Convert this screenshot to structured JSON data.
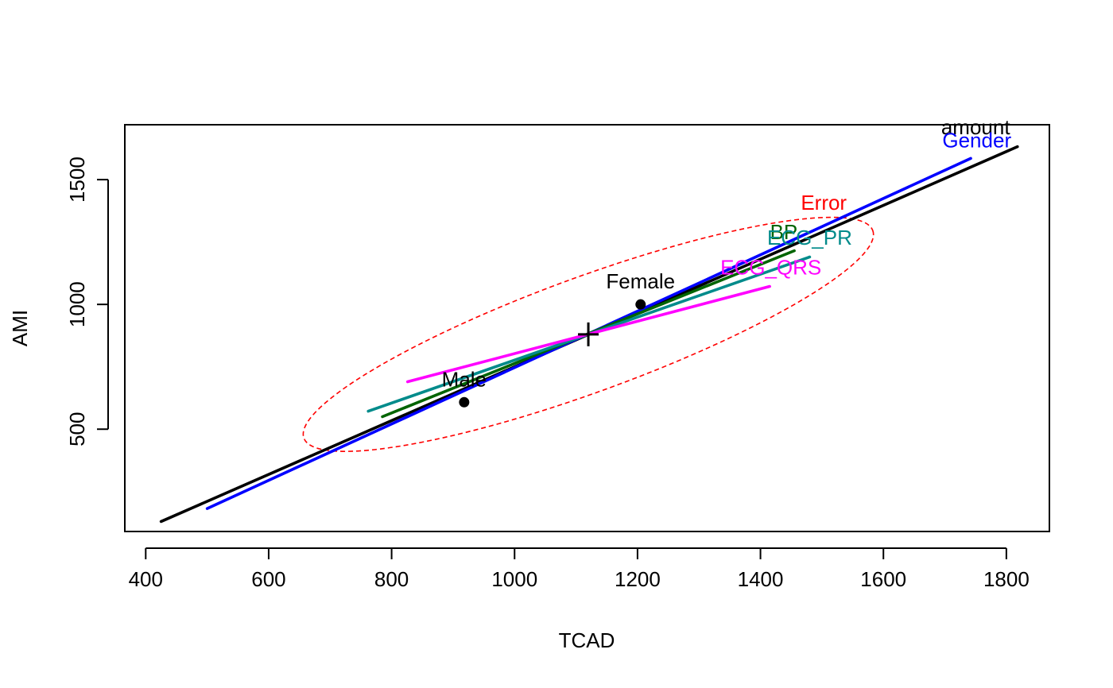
{
  "chart_data": {
    "type": "line",
    "title": "",
    "xlabel": "TCAD",
    "ylabel": "AMI",
    "xlim": [
      366,
      1870
    ],
    "ylim": [
      90,
      1720
    ],
    "x_ticks": [
      400,
      600,
      800,
      1000,
      1200,
      1400,
      1600,
      1800
    ],
    "y_ticks": [
      500,
      1000,
      1500
    ],
    "grid": false,
    "legend": "none",
    "center": {
      "x": 1120,
      "y": 880
    },
    "series": [
      {
        "name": "amount",
        "color": "#000000",
        "x": [
          425,
          1818
        ],
        "y": [
          130,
          1632
        ],
        "label_at": {
          "x": 1750,
          "y": 1682
        }
      },
      {
        "name": "Gender",
        "color": "#0000ff",
        "x": [
          500,
          1742
        ],
        "y": [
          182,
          1585
        ],
        "label_at": {
          "x": 1752,
          "y": 1630
        }
      },
      {
        "name": "BP",
        "color": "#006400",
        "x": [
          785,
          1455
        ],
        "y": [
          550,
          1215
        ],
        "label_at": {
          "x": 1438,
          "y": 1262
        }
      },
      {
        "name": "ECG_PR",
        "color": "#008b8b",
        "x": [
          762,
          1480
        ],
        "y": [
          572,
          1190
        ],
        "label_at": {
          "x": 1480,
          "y": 1240
        }
      },
      {
        "name": "ECG_QRS",
        "color": "#ff00ff",
        "x": [
          826,
          1415
        ],
        "y": [
          690,
          1072
        ],
        "label_at": {
          "x": 1417,
          "y": 1120
        }
      }
    ],
    "points": [
      {
        "label": "Female",
        "x": 1205,
        "y": 1000
      },
      {
        "label": "Male",
        "x": 918,
        "y": 608
      }
    ],
    "error_ellipse": {
      "label": "Error",
      "color": "#ff0000",
      "center": {
        "x": 1120,
        "y": 880
      },
      "through": [
        {
          "x": 677,
          "y": 480
        },
        {
          "x": 1550,
          "y": 1265
        }
      ],
      "label_at": {
        "x": 1503,
        "y": 1380
      }
    }
  }
}
